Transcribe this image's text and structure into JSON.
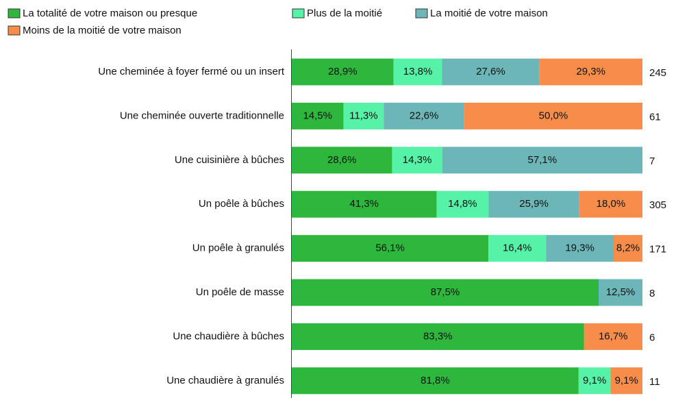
{
  "chart_data": {
    "type": "stacked-bar-horizontal",
    "categories": [
      "Une cheminée à foyer fermé ou un insert",
      "Une cheminée ouverte traditionnelle",
      "Une cuisinière à bûches",
      "Un poêle à bûches",
      "Un poêle à granulés",
      "Un poêle de masse",
      "Une chaudière à bûches",
      "Une chaudière à granulés"
    ],
    "series": [
      {
        "name": "La totalité de votre maison ou presque",
        "color": "#2db83d",
        "values": [
          28.9,
          14.5,
          28.6,
          41.3,
          56.1,
          87.5,
          83.3,
          81.8
        ],
        "value_labels": [
          "28,9%",
          "14,5%",
          "28,6%",
          "41,3%",
          "56,1%",
          "87,5%",
          "83,3%",
          "81,8%"
        ]
      },
      {
        "name": "Plus de la moitié",
        "color": "#55f2a8",
        "values": [
          13.8,
          11.3,
          14.3,
          14.8,
          16.4,
          null,
          null,
          9.1
        ],
        "value_labels": [
          "13,8%",
          "11,3%",
          "14,3%",
          "14,8%",
          "16,4%",
          null,
          null,
          "9,1%"
        ]
      },
      {
        "name": "La moitié de votre maison",
        "color": "#6cb6b8",
        "values": [
          27.6,
          22.6,
          57.1,
          25.9,
          19.3,
          12.5,
          null,
          null
        ],
        "value_labels": [
          "27,6%",
          "22,6%",
          "57,1%",
          "25,9%",
          "19,3%",
          "12,5%",
          null,
          null
        ]
      },
      {
        "name": "Moins de la moitié de votre maison",
        "color": "#f78d4b",
        "values": [
          29.3,
          50.0,
          null,
          18.0,
          8.2,
          null,
          16.7,
          9.1
        ],
        "value_labels": [
          "29,3%",
          "50,0%",
          null,
          "18,0%",
          "8,2%",
          null,
          "16,7%",
          "9,1%"
        ]
      }
    ],
    "counts": [
      245,
      61,
      7,
      305,
      171,
      8,
      6,
      11
    ]
  }
}
